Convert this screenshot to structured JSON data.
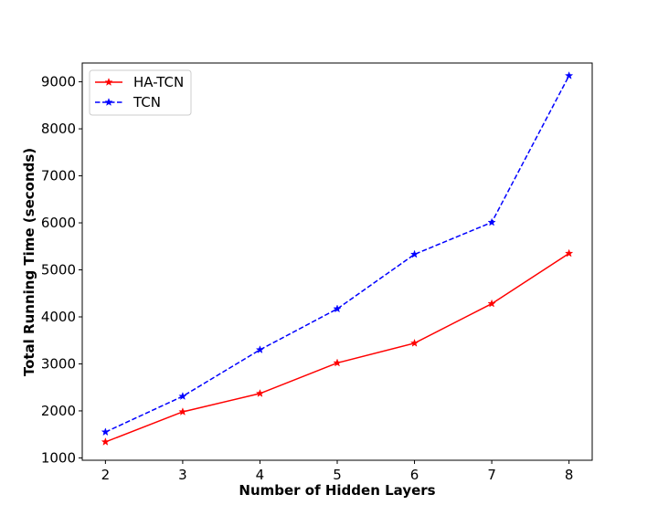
{
  "chart_data": {
    "type": "line",
    "title": "",
    "xlabel": "Number of Hidden Layers",
    "ylabel": "Total Running Time (seconds)",
    "x": [
      2,
      3,
      4,
      5,
      6,
      7,
      8
    ],
    "xlim": [
      1.7,
      8.3
    ],
    "ylim": [
      950,
      9400
    ],
    "xticks": [
      2,
      3,
      4,
      5,
      6,
      7,
      8
    ],
    "yticks": [
      1000,
      2000,
      3000,
      4000,
      5000,
      6000,
      7000,
      8000,
      9000
    ],
    "grid": false,
    "legend_position": "top-left",
    "series": [
      {
        "name": "HA-TCN",
        "color": "#ff0000",
        "linestyle": "solid",
        "marker": "star",
        "values": [
          1340,
          1980,
          2370,
          3020,
          3440,
          4280,
          5350
        ]
      },
      {
        "name": "TCN",
        "color": "#0000ff",
        "linestyle": "dashed",
        "marker": "star",
        "values": [
          1550,
          2310,
          3300,
          4170,
          5330,
          6010,
          9130
        ]
      }
    ]
  }
}
